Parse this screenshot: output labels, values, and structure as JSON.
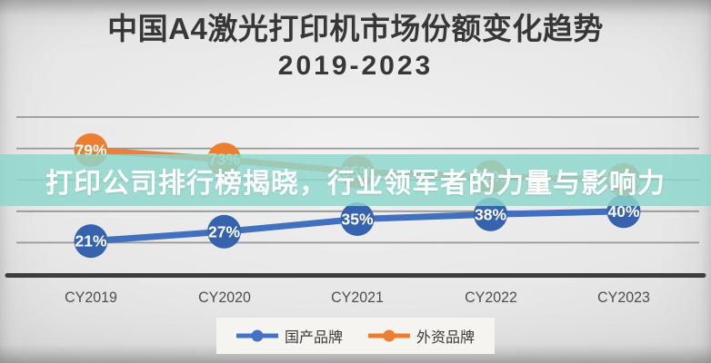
{
  "title": {
    "line1": "中国A4激光打印机市场份额变化趋势",
    "line2": "2019-2023"
  },
  "banner": {
    "text": "打印公司排行榜揭晓，行业领军者的力量与影响力",
    "bg_color": "#8ed6cd"
  },
  "chart_data": {
    "type": "line",
    "title": "中国A4激光打印机市场份额变化趋势 2019-2023",
    "categories": [
      "CY2019",
      "CY2020",
      "CY2021",
      "CY2022",
      "CY2023"
    ],
    "series": [
      {
        "key": "domestic",
        "name": "国产品牌",
        "line_color": "#4170be",
        "marker_color": "#3662ae",
        "values": [
          21,
          27,
          35,
          38,
          40
        ],
        "labels": [
          "21%",
          "27%",
          "35%",
          "38%",
          "40%"
        ]
      },
      {
        "key": "foreign",
        "name": "外资品牌",
        "line_color": "#e8813a",
        "marker_color": "#ed7d31",
        "values": [
          79,
          73,
          65,
          62,
          60
        ],
        "labels": [
          "79%",
          "73%",
          "65%",
          "62%",
          "60%"
        ]
      }
    ],
    "ylim": [
      0,
      100
    ],
    "gridline_step": 20,
    "grid": true,
    "legend_position": "bottom",
    "data_labels": "on"
  },
  "legend": {
    "items": [
      {
        "key": "domestic",
        "label": "国产品牌",
        "color": "#4472c4"
      },
      {
        "key": "foreign",
        "label": "外资品牌",
        "color": "#ed7d31"
      }
    ]
  }
}
